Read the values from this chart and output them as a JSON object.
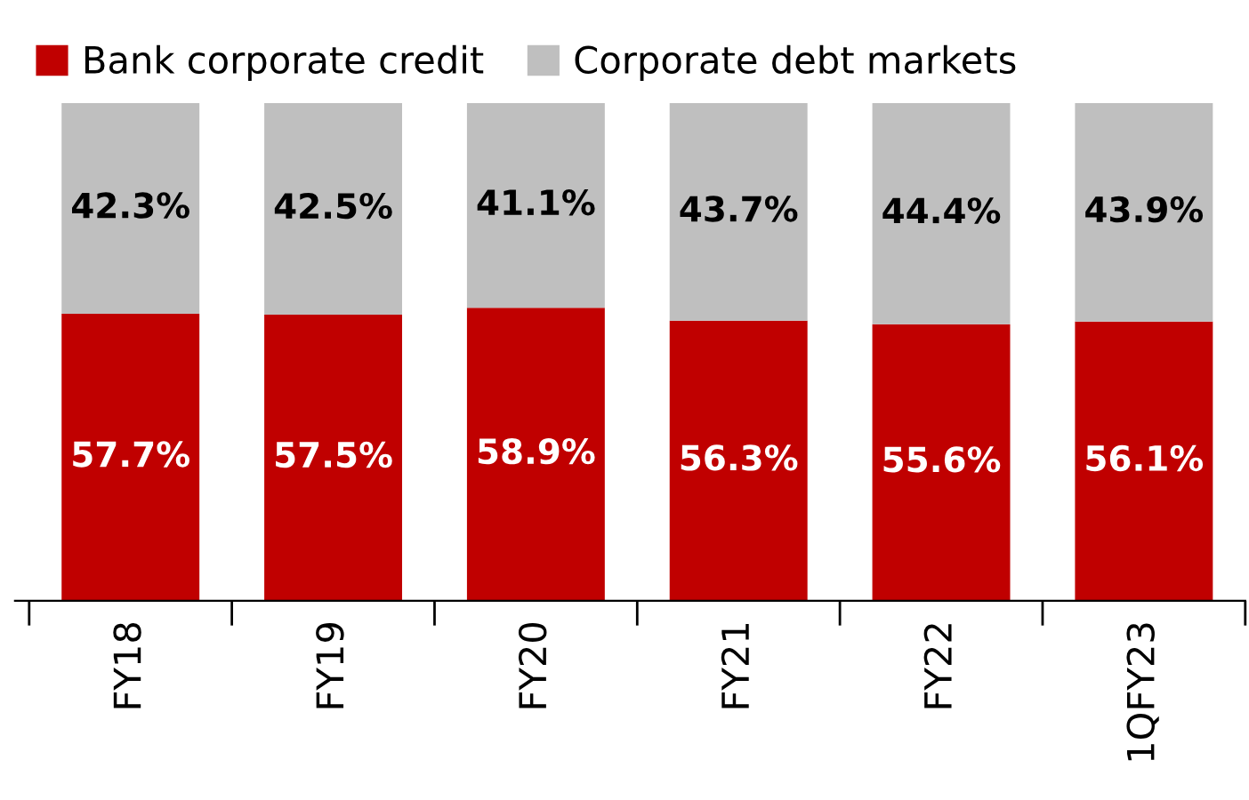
{
  "chart_data": {
    "type": "bar",
    "stacked": true,
    "legend": "top",
    "categories": [
      "FY18",
      "FY19",
      "FY20",
      "FY21",
      "FY22",
      "1QFY23"
    ],
    "series": [
      {
        "name": "Bank corporate credit",
        "color": "#c00000",
        "values": [
          57.7,
          57.5,
          58.9,
          56.3,
          55.6,
          56.1
        ],
        "value_labels": [
          "57.7%",
          "57.5%",
          "58.9%",
          "56.3%",
          "55.6%",
          "56.1%"
        ]
      },
      {
        "name": "Corporate debt markets",
        "color": "#bfbfbf",
        "values": [
          42.3,
          42.5,
          41.1,
          43.7,
          44.4,
          43.9
        ],
        "value_labels": [
          "42.3%",
          "42.5%",
          "41.1%",
          "43.7%",
          "44.4%",
          "43.9%"
        ]
      }
    ]
  }
}
